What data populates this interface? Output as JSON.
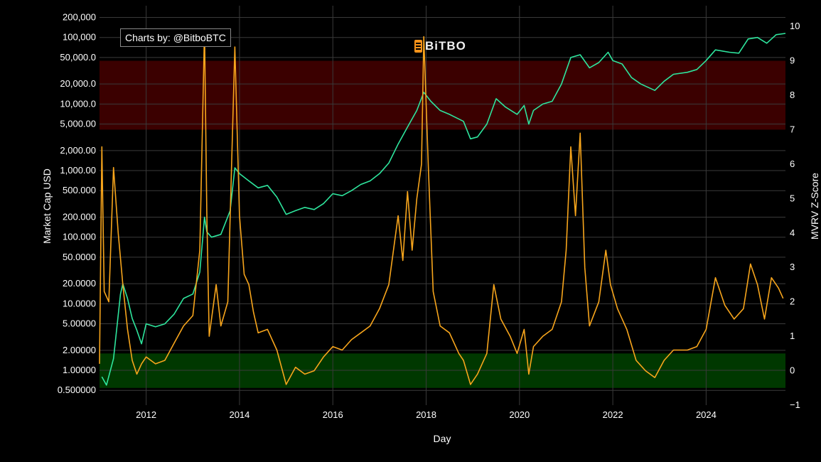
{
  "attribution": "Charts by: @BitboBTC",
  "logo_text": "BiTBO",
  "colors": {
    "background": "#000000",
    "grid": "#3a3a3a",
    "market_cap_line": "#2ee59d",
    "zscore_line": "#f7a51c",
    "red_band": "#3b0000",
    "green_band": "#003800"
  },
  "chart_data": {
    "type": "line",
    "xlabel": "Day",
    "ylabel_left": "Market Cap USD",
    "ylabel_right": "MVRV Z-Score",
    "x_ticks": [
      "2012",
      "2014",
      "2016",
      "2018",
      "2020",
      "2022",
      "2024"
    ],
    "x_range": [
      2011.0,
      2025.7
    ],
    "y_left_scale": "log",
    "y_left_range": [
      0.3,
      300000
    ],
    "y_left_ticks": [
      "200,000",
      "100,000",
      "50,000.0",
      "20,000.0",
      "10,000.0",
      "5,000.00",
      "2,000.00",
      "1,000.00",
      "500.000",
      "200.000",
      "100.000",
      "50.0000",
      "20.0000",
      "10.0000",
      "5.00000",
      "2.00000",
      "1.00000",
      "0.500000"
    ],
    "y_right_range": [
      -1.0,
      10.6
    ],
    "y_right_ticks": [
      "10",
      "9",
      "8",
      "7",
      "6",
      "5",
      "4",
      "3",
      "2",
      "1",
      "0",
      "−1"
    ],
    "bands": [
      {
        "zone": "red",
        "from": 7.0,
        "to": 9.0
      },
      {
        "zone": "green",
        "from": -0.5,
        "to": 0.5
      }
    ],
    "grid": true,
    "series": [
      {
        "axis": "left",
        "points": [
          [
            2011.05,
            0.8
          ],
          [
            2011.15,
            0.6
          ],
          [
            2011.3,
            1.5
          ],
          [
            2011.45,
            14
          ],
          [
            2011.5,
            20
          ],
          [
            2011.6,
            12
          ],
          [
            2011.7,
            6
          ],
          [
            2011.8,
            4
          ],
          [
            2011.9,
            2.5
          ],
          [
            2012.0,
            5
          ],
          [
            2012.2,
            4.5
          ],
          [
            2012.4,
            5
          ],
          [
            2012.6,
            7
          ],
          [
            2012.8,
            12
          ],
          [
            2013.0,
            14
          ],
          [
            2013.15,
            30
          ],
          [
            2013.25,
            200
          ],
          [
            2013.3,
            120
          ],
          [
            2013.4,
            100
          ],
          [
            2013.6,
            110
          ],
          [
            2013.8,
            250
          ],
          [
            2013.9,
            1100
          ],
          [
            2014.0,
            900
          ],
          [
            2014.2,
            700
          ],
          [
            2014.4,
            550
          ],
          [
            2014.6,
            600
          ],
          [
            2014.8,
            400
          ],
          [
            2015.0,
            220
          ],
          [
            2015.2,
            250
          ],
          [
            2015.4,
            280
          ],
          [
            2015.6,
            260
          ],
          [
            2015.8,
            320
          ],
          [
            2016.0,
            450
          ],
          [
            2016.2,
            420
          ],
          [
            2016.4,
            500
          ],
          [
            2016.6,
            620
          ],
          [
            2016.8,
            700
          ],
          [
            2017.0,
            900
          ],
          [
            2017.2,
            1300
          ],
          [
            2017.4,
            2500
          ],
          [
            2017.6,
            4500
          ],
          [
            2017.8,
            8000
          ],
          [
            2017.95,
            15000
          ],
          [
            2018.1,
            11000
          ],
          [
            2018.3,
            8000
          ],
          [
            2018.5,
            7000
          ],
          [
            2018.8,
            5500
          ],
          [
            2018.95,
            3000
          ],
          [
            2019.1,
            3200
          ],
          [
            2019.3,
            5000
          ],
          [
            2019.5,
            12000
          ],
          [
            2019.7,
            9000
          ],
          [
            2019.95,
            7000
          ],
          [
            2020.1,
            9500
          ],
          [
            2020.2,
            5000
          ],
          [
            2020.3,
            8000
          ],
          [
            2020.5,
            10000
          ],
          [
            2020.7,
            11000
          ],
          [
            2020.9,
            20000
          ],
          [
            2021.1,
            50000
          ],
          [
            2021.3,
            55000
          ],
          [
            2021.5,
            35000
          ],
          [
            2021.7,
            42000
          ],
          [
            2021.9,
            60000
          ],
          [
            2022.0,
            45000
          ],
          [
            2022.2,
            40000
          ],
          [
            2022.4,
            25000
          ],
          [
            2022.6,
            20000
          ],
          [
            2022.9,
            16000
          ],
          [
            2023.1,
            22000
          ],
          [
            2023.3,
            28000
          ],
          [
            2023.6,
            30000
          ],
          [
            2023.8,
            33000
          ],
          [
            2024.0,
            45000
          ],
          [
            2024.2,
            65000
          ],
          [
            2024.5,
            60000
          ],
          [
            2024.7,
            58000
          ],
          [
            2024.9,
            95000
          ],
          [
            2025.1,
            100000
          ],
          [
            2025.3,
            82000
          ],
          [
            2025.5,
            110000
          ],
          [
            2025.7,
            115000
          ]
        ]
      },
      {
        "axis": "right",
        "points": [
          [
            2011.0,
            0.2
          ],
          [
            2011.05,
            6.5
          ],
          [
            2011.1,
            2.3
          ],
          [
            2011.2,
            2.0
          ],
          [
            2011.3,
            5.9
          ],
          [
            2011.4,
            4.0
          ],
          [
            2011.5,
            2.5
          ],
          [
            2011.6,
            1.2
          ],
          [
            2011.7,
            0.3
          ],
          [
            2011.8,
            -0.1
          ],
          [
            2011.9,
            0.2
          ],
          [
            2012.0,
            0.4
          ],
          [
            2012.2,
            0.2
          ],
          [
            2012.4,
            0.3
          ],
          [
            2012.6,
            0.8
          ],
          [
            2012.8,
            1.3
          ],
          [
            2013.0,
            1.6
          ],
          [
            2013.15,
            3.5
          ],
          [
            2013.25,
            9.9
          ],
          [
            2013.3,
            4.5
          ],
          [
            2013.35,
            1.0
          ],
          [
            2013.5,
            2.5
          ],
          [
            2013.6,
            1.3
          ],
          [
            2013.75,
            2.0
          ],
          [
            2013.9,
            9.4
          ],
          [
            2014.0,
            4.5
          ],
          [
            2014.1,
            2.8
          ],
          [
            2014.2,
            2.5
          ],
          [
            2014.3,
            1.7
          ],
          [
            2014.4,
            1.1
          ],
          [
            2014.6,
            1.2
          ],
          [
            2014.8,
            0.6
          ],
          [
            2015.0,
            -0.4
          ],
          [
            2015.2,
            0.1
          ],
          [
            2015.4,
            -0.1
          ],
          [
            2015.6,
            0.0
          ],
          [
            2015.8,
            0.4
          ],
          [
            2016.0,
            0.7
          ],
          [
            2016.2,
            0.6
          ],
          [
            2016.4,
            0.9
          ],
          [
            2016.6,
            1.1
          ],
          [
            2016.8,
            1.3
          ],
          [
            2017.0,
            1.8
          ],
          [
            2017.2,
            2.5
          ],
          [
            2017.4,
            4.5
          ],
          [
            2017.5,
            3.2
          ],
          [
            2017.6,
            5.2
          ],
          [
            2017.7,
            3.5
          ],
          [
            2017.8,
            5.0
          ],
          [
            2017.9,
            6.0
          ],
          [
            2017.95,
            9.7
          ],
          [
            2018.05,
            5.8
          ],
          [
            2018.15,
            2.3
          ],
          [
            2018.3,
            1.3
          ],
          [
            2018.5,
            1.1
          ],
          [
            2018.7,
            0.5
          ],
          [
            2018.8,
            0.3
          ],
          [
            2018.95,
            -0.4
          ],
          [
            2019.1,
            -0.1
          ],
          [
            2019.3,
            0.5
          ],
          [
            2019.45,
            2.5
          ],
          [
            2019.6,
            1.5
          ],
          [
            2019.8,
            1.0
          ],
          [
            2019.95,
            0.5
          ],
          [
            2020.1,
            1.2
          ],
          [
            2020.2,
            -0.1
          ],
          [
            2020.3,
            0.7
          ],
          [
            2020.5,
            1.0
          ],
          [
            2020.7,
            1.2
          ],
          [
            2020.9,
            2.0
          ],
          [
            2021.0,
            3.5
          ],
          [
            2021.1,
            6.5
          ],
          [
            2021.2,
            4.5
          ],
          [
            2021.3,
            6.9
          ],
          [
            2021.4,
            3.0
          ],
          [
            2021.5,
            1.3
          ],
          [
            2021.7,
            2.0
          ],
          [
            2021.85,
            3.5
          ],
          [
            2021.95,
            2.5
          ],
          [
            2022.1,
            1.8
          ],
          [
            2022.3,
            1.2
          ],
          [
            2022.5,
            0.3
          ],
          [
            2022.7,
            0.0
          ],
          [
            2022.9,
            -0.2
          ],
          [
            2023.1,
            0.3
          ],
          [
            2023.3,
            0.6
          ],
          [
            2023.6,
            0.6
          ],
          [
            2023.8,
            0.7
          ],
          [
            2024.0,
            1.2
          ],
          [
            2024.2,
            2.7
          ],
          [
            2024.4,
            1.9
          ],
          [
            2024.6,
            1.5
          ],
          [
            2024.8,
            1.8
          ],
          [
            2024.95,
            3.1
          ],
          [
            2025.1,
            2.5
          ],
          [
            2025.25,
            1.5
          ],
          [
            2025.4,
            2.7
          ],
          [
            2025.55,
            2.4
          ],
          [
            2025.65,
            2.1
          ]
        ]
      }
    ]
  }
}
